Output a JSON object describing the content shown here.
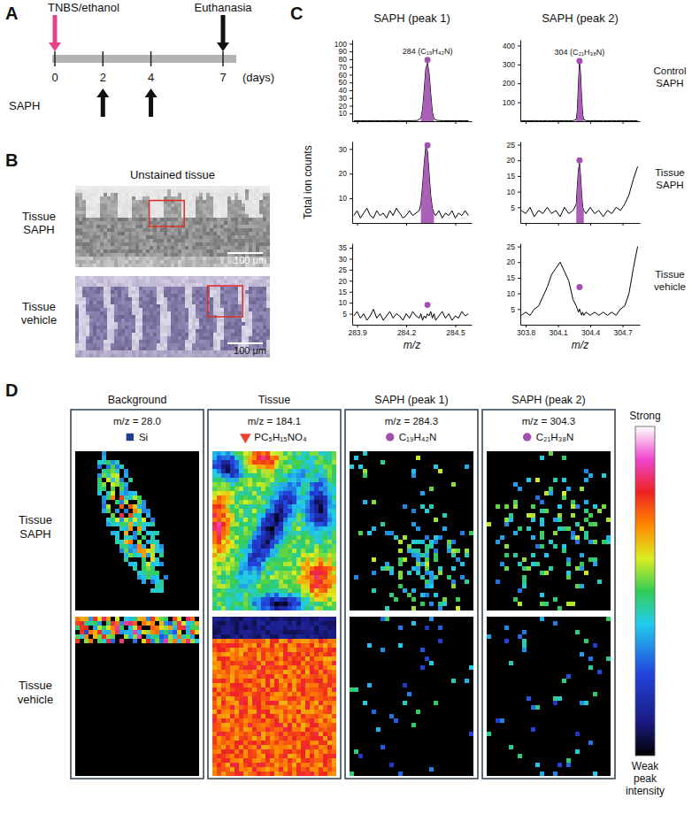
{
  "panel_a": {
    "letter": "A",
    "treatment": "TNBS/ethanol",
    "endpoint": "Euthanasia",
    "agent": "SAPH",
    "days": [
      0,
      2,
      4,
      7
    ],
    "unit": "(days)",
    "dose_days": [
      2,
      4
    ]
  },
  "panel_b": {
    "letter": "B",
    "title": "Unstained tissue",
    "rows": [
      {
        "label": "Tissue SAPH",
        "scale_bar": "100 μm"
      },
      {
        "label": "Tissue vehicle",
        "scale_bar": "100 μm"
      }
    ]
  },
  "panel_c": {
    "letter": "C",
    "ylabel": "Total ion counts",
    "row_labels": [
      "Control SAPH",
      "Tissue SAPH",
      "Tissue vehicle"
    ]
  },
  "chart_data": [
    {
      "type": "line",
      "title": "SAPH (peak 1)",
      "annotation": "284 (C₁₉H₄₂N)",
      "xlim": [
        283.87,
        284.6
      ],
      "xticks": [
        283.9,
        284.2,
        284.5
      ],
      "ylim": [
        0,
        105
      ],
      "yticks": [
        10,
        20,
        30,
        40,
        50,
        60,
        70,
        80,
        90,
        100
      ],
      "tick_labels": "y",
      "series": [
        {
          "type": "line",
          "color": "#000000",
          "x": [
            283.88,
            283.92,
            283.96,
            284.0,
            284.04,
            284.08,
            284.12,
            284.16,
            284.2,
            284.24,
            284.27,
            284.29,
            284.3,
            284.31,
            284.32,
            284.33,
            284.34,
            284.35,
            284.36,
            284.37,
            284.39,
            284.43,
            284.47,
            284.51,
            284.55,
            284.58
          ],
          "values": [
            0.5,
            0.6,
            0.5,
            0.7,
            0.5,
            0.6,
            0.5,
            0.8,
            0.6,
            0.7,
            1,
            4,
            15,
            40,
            68,
            75,
            62,
            35,
            12,
            3,
            1,
            0.6,
            0.5,
            0.6,
            0.5,
            0.6
          ]
        },
        {
          "type": "area",
          "color": "#a24fb0",
          "x": [
            284.29,
            284.3,
            284.31,
            284.32,
            284.33,
            284.34,
            284.35,
            284.36,
            284.37
          ],
          "values": [
            4,
            15,
            40,
            68,
            75,
            62,
            35,
            12,
            3
          ]
        },
        {
          "type": "scatter",
          "color": "#a24fb0",
          "marker": "circle",
          "x": [
            284.33
          ],
          "values": [
            79
          ]
        }
      ]
    },
    {
      "type": "line",
      "title": "SAPH (peak 2)",
      "annotation": "304 (C₂₁H₃₈N)",
      "xlim": [
        303.75,
        304.86
      ],
      "xticks": [
        303.8,
        304.1,
        304.4,
        304.7
      ],
      "ylim": [
        0,
        430
      ],
      "yticks": [
        100,
        200,
        300,
        400
      ],
      "tick_labels": "y",
      "series": [
        {
          "type": "line",
          "color": "#000000",
          "x": [
            303.76,
            303.8,
            303.84,
            303.88,
            303.92,
            303.96,
            304.0,
            304.04,
            304.08,
            304.12,
            304.16,
            304.2,
            304.24,
            304.27,
            304.28,
            304.29,
            304.3,
            304.31,
            304.32,
            304.33,
            304.34,
            304.36,
            304.4,
            304.44,
            304.48,
            304.52,
            304.56,
            304.6,
            304.64,
            304.68,
            304.72,
            304.76,
            304.8,
            304.84
          ],
          "values": [
            2,
            3,
            2,
            3,
            2,
            2,
            3,
            2,
            3,
            2,
            3,
            2,
            3,
            8,
            60,
            200,
            310,
            250,
            120,
            35,
            8,
            3,
            2,
            3,
            2,
            3,
            2,
            3,
            2,
            3,
            2,
            3,
            2,
            3
          ]
        },
        {
          "type": "area",
          "color": "#a24fb0",
          "x": [
            304.27,
            304.28,
            304.29,
            304.3,
            304.31,
            304.32,
            304.33,
            304.34
          ],
          "values": [
            8,
            60,
            200,
            310,
            250,
            120,
            35,
            8
          ]
        },
        {
          "type": "scatter",
          "color": "#a24fb0",
          "marker": "circle",
          "x": [
            304.3
          ],
          "values": [
            318
          ]
        }
      ]
    },
    {
      "type": "line",
      "xlim": [
        283.87,
        284.6
      ],
      "xticks": [
        283.9,
        284.2,
        284.5
      ],
      "ylim": [
        0,
        33
      ],
      "yticks": [
        10,
        20,
        30
      ],
      "tick_labels": "y",
      "series": [
        {
          "type": "line",
          "color": "#000000",
          "x": [
            283.88,
            283.9,
            283.92,
            283.94,
            283.96,
            283.98,
            284.0,
            284.02,
            284.04,
            284.06,
            284.08,
            284.1,
            284.12,
            284.14,
            284.16,
            284.18,
            284.2,
            284.22,
            284.24,
            284.26,
            284.28,
            284.29,
            284.3,
            284.31,
            284.32,
            284.33,
            284.34,
            284.35,
            284.36,
            284.37,
            284.38,
            284.4,
            284.42,
            284.44,
            284.46,
            284.48,
            284.5,
            284.52,
            284.54,
            284.56,
            284.58
          ],
          "values": [
            3,
            5,
            2,
            4,
            6,
            3,
            2,
            5,
            3,
            4,
            2,
            5,
            3,
            6,
            4,
            2,
            3,
            5,
            3,
            4,
            5,
            8,
            15,
            24,
            31,
            29,
            20,
            11,
            6,
            4,
            3,
            5,
            2,
            4,
            3,
            5,
            2,
            4,
            3,
            5,
            3
          ]
        },
        {
          "type": "area",
          "color": "#a24fb0",
          "x": [
            284.29,
            284.3,
            284.31,
            284.32,
            284.33,
            284.34,
            284.35,
            284.36,
            284.37
          ],
          "values": [
            8,
            15,
            24,
            31,
            29,
            20,
            11,
            6,
            4
          ]
        },
        {
          "type": "scatter",
          "color": "#a24fb0",
          "marker": "circle",
          "x": [
            284.33
          ],
          "values": [
            31.5
          ]
        }
      ]
    },
    {
      "type": "line",
      "xlim": [
        303.75,
        304.86
      ],
      "xticks": [
        303.8,
        304.1,
        304.4,
        304.7
      ],
      "ylim": [
        0,
        26
      ],
      "yticks": [
        5,
        10,
        15,
        20,
        25
      ],
      "tick_labels": "y",
      "series": [
        {
          "type": "line",
          "color": "#000000",
          "x": [
            303.76,
            303.8,
            303.84,
            303.88,
            303.92,
            303.96,
            304.0,
            304.04,
            304.08,
            304.12,
            304.16,
            304.2,
            304.24,
            304.27,
            304.28,
            304.29,
            304.3,
            304.31,
            304.32,
            304.33,
            304.34,
            304.36,
            304.4,
            304.44,
            304.48,
            304.52,
            304.56,
            304.6,
            304.64,
            304.68,
            304.72,
            304.76,
            304.8,
            304.84
          ],
          "values": [
            4,
            3,
            5,
            2,
            4,
            3,
            5,
            3,
            4,
            2,
            5,
            3,
            4,
            6,
            12,
            17,
            19,
            15,
            9,
            5,
            4,
            3,
            5,
            3,
            4,
            2,
            4,
            3,
            5,
            4,
            6,
            9,
            14,
            18
          ]
        },
        {
          "type": "area",
          "color": "#a24fb0",
          "x": [
            304.27,
            304.28,
            304.29,
            304.3,
            304.31,
            304.32,
            304.33,
            304.34
          ],
          "values": [
            6,
            12,
            17,
            19,
            15,
            9,
            5,
            4
          ]
        },
        {
          "type": "scatter",
          "color": "#a24fb0",
          "marker": "circle",
          "x": [
            304.3
          ],
          "values": [
            20
          ]
        }
      ]
    },
    {
      "type": "line",
      "xlabel": "m/z",
      "xlim": [
        283.87,
        284.6
      ],
      "xticks": [
        283.9,
        284.2,
        284.5
      ],
      "ylim": [
        0,
        37
      ],
      "yticks": [
        5,
        10,
        15,
        20,
        25,
        30,
        35
      ],
      "series": [
        {
          "type": "line",
          "color": "#000000",
          "x": [
            283.88,
            283.9,
            283.92,
            283.94,
            283.96,
            283.98,
            284.0,
            284.02,
            284.04,
            284.06,
            284.08,
            284.1,
            284.12,
            284.14,
            284.16,
            284.18,
            284.2,
            284.22,
            284.24,
            284.26,
            284.28,
            284.29,
            284.3,
            284.31,
            284.32,
            284.33,
            284.34,
            284.35,
            284.36,
            284.37,
            284.38,
            284.4,
            284.42,
            284.44,
            284.46,
            284.48,
            284.5,
            284.52,
            284.54,
            284.56,
            284.58
          ],
          "values": [
            4,
            6,
            3,
            5,
            2,
            4,
            7,
            3,
            5,
            2,
            4,
            6,
            3,
            5,
            4,
            2,
            5,
            3,
            6,
            4,
            3,
            5,
            2,
            4,
            3,
            5,
            4,
            6,
            3,
            5,
            2,
            4,
            6,
            3,
            5,
            2,
            4,
            3,
            6,
            4,
            5
          ]
        },
        {
          "type": "scatter",
          "color": "#a24fb0",
          "marker": "circle",
          "x": [
            284.33
          ],
          "values": [
            9
          ]
        }
      ]
    },
    {
      "type": "line",
      "xlabel": "m/z",
      "xlim": [
        303.75,
        304.86
      ],
      "xticks": [
        303.8,
        304.1,
        304.4,
        304.7
      ],
      "ylim": [
        0,
        26
      ],
      "yticks": [
        5,
        10,
        15,
        20,
        25
      ],
      "series": [
        {
          "type": "line",
          "color": "#000000",
          "x": [
            303.76,
            303.8,
            303.84,
            303.88,
            303.92,
            303.96,
            304.0,
            304.04,
            304.08,
            304.12,
            304.16,
            304.2,
            304.24,
            304.27,
            304.28,
            304.29,
            304.3,
            304.31,
            304.32,
            304.33,
            304.34,
            304.36,
            304.4,
            304.44,
            304.48,
            304.52,
            304.56,
            304.6,
            304.64,
            304.68,
            304.72,
            304.76,
            304.8,
            304.84
          ],
          "values": [
            3,
            4,
            3,
            5,
            6,
            9,
            12,
            16,
            18,
            20,
            17,
            14,
            8,
            6,
            5,
            4,
            5,
            4,
            3,
            4,
            3,
            4,
            3,
            4,
            3,
            4,
            3,
            4,
            3,
            5,
            6,
            10,
            18,
            25
          ]
        },
        {
          "type": "scatter",
          "color": "#a24fb0",
          "marker": "circle",
          "x": [
            304.3
          ],
          "values": [
            12
          ]
        }
      ]
    }
  ],
  "panel_d": {
    "letter": "D",
    "columns": [
      {
        "title": "Background",
        "mz": "m/z = 28.0",
        "species": "Si",
        "marker": "square",
        "color": "#1f3c8f"
      },
      {
        "title": "Tissue",
        "mz": "m/z = 184.1",
        "species": "PC₅H₁₅NO₄",
        "marker": "triangle",
        "color": "#e8452c"
      },
      {
        "title": "SAPH (peak 1)",
        "mz": "m/z = 284.3",
        "species": "C₁₉H₄₂N",
        "marker": "circle",
        "color": "#a24fb0"
      },
      {
        "title": "SAPH (peak 2)",
        "mz": "m/z = 304.3",
        "species": "C₂₁H₃₈N",
        "marker": "circle",
        "color": "#a24fb0"
      }
    ],
    "rows": [
      "Tissue SAPH",
      "Tissue vehicle"
    ],
    "colorbar": {
      "high": "Strong",
      "low": "Weak peak intensity"
    }
  }
}
